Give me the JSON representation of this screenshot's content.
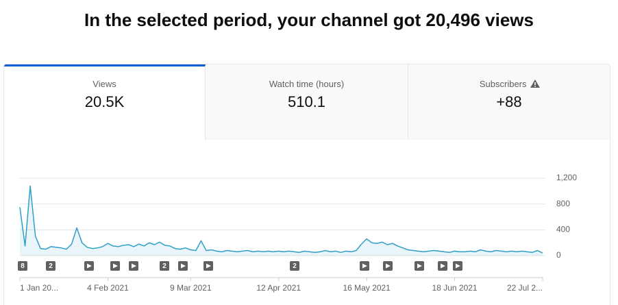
{
  "header": {
    "title": "In the selected period, your channel got 20,496 views"
  },
  "tabs": [
    {
      "label": "Views",
      "value": "20.5K"
    },
    {
      "label": "Watch time (hours)",
      "value": "510.1"
    },
    {
      "label": "Subscribers",
      "value": "+88"
    }
  ],
  "video_markers": [
    "8",
    "2",
    "2",
    "2"
  ],
  "chart_data": {
    "type": "line",
    "categories": [
      "1 Jan 20...",
      null,
      null,
      null,
      null,
      null,
      null,
      null,
      null,
      null,
      null,
      null,
      null,
      null,
      null,
      null,
      null,
      "4 Feb 2021",
      null,
      null,
      null,
      null,
      null,
      null,
      null,
      null,
      null,
      null,
      null,
      null,
      null,
      null,
      null,
      "9 Mar 2021",
      null,
      null,
      null,
      null,
      null,
      null,
      null,
      null,
      null,
      null,
      null,
      null,
      null,
      null,
      null,
      null,
      "12 Apr 2021",
      null,
      null,
      null,
      null,
      null,
      null,
      null,
      null,
      null,
      null,
      null,
      null,
      null,
      null,
      null,
      null,
      "16 May 2021",
      null,
      null,
      null,
      null,
      null,
      null,
      null,
      null,
      null,
      null,
      null,
      null,
      null,
      null,
      null,
      null,
      "18 Jun 2021",
      null,
      null,
      null,
      null,
      null,
      null,
      null,
      null,
      null,
      null,
      null,
      null,
      null,
      null,
      null,
      null,
      "22 Jul 2..."
    ],
    "values": [
      750,
      150,
      1080,
      300,
      110,
      100,
      140,
      130,
      120,
      100,
      180,
      430,
      200,
      130,
      110,
      120,
      140,
      190,
      150,
      140,
      160,
      170,
      140,
      180,
      150,
      200,
      170,
      210,
      160,
      150,
      110,
      100,
      120,
      90,
      80,
      230,
      80,
      90,
      70,
      60,
      80,
      70,
      60,
      70,
      80,
      60,
      70,
      60,
      70,
      60,
      70,
      60,
      70,
      60,
      50,
      70,
      60,
      50,
      60,
      80,
      60,
      70,
      50,
      70,
      60,
      80,
      180,
      260,
      200,
      190,
      210,
      170,
      190,
      150,
      120,
      90,
      80,
      70,
      60,
      70,
      80,
      70,
      60,
      50,
      70,
      60,
      60,
      70,
      60,
      90,
      70,
      60,
      80,
      70,
      60,
      70,
      60,
      70,
      60,
      50,
      80,
      40
    ],
    "color": "#2f9fc8",
    "ylim": [
      0,
      1200
    ],
    "yticks": [
      0,
      400,
      800,
      {
        "value": 1200,
        "label": "1,200"
      }
    ],
    "grid": true
  }
}
